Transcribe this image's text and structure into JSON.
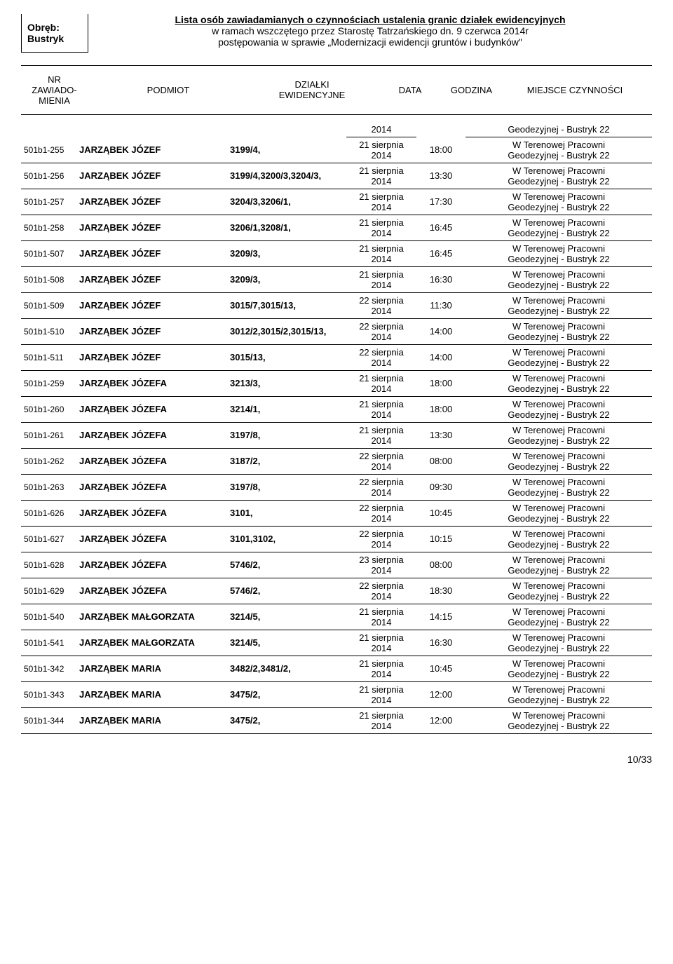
{
  "header": {
    "obreb_label": "Obręb:",
    "obreb_value": "Bustryk",
    "title_line1": "Lista osób zawiadamianych o czynnościach ustalenia granic działek ewidencyjnych",
    "title_line2": "w ramach wszczętego przez Starostę Tatrzańskiego dn. 9 czerwca 2014r",
    "title_line3": "postępowania w sprawie „Modernizacji ewidencji gruntów i budynków\""
  },
  "columns": {
    "c0a": "NR ZAWIADO-",
    "c0b": "MIENIA",
    "c1": "PODMIOT",
    "c2a": "DZIAŁKI",
    "c2b": "EWIDENCYJNE",
    "c3": "DATA",
    "c4": "GODZINA",
    "c5": "MIEJSCE CZYNNOŚCI"
  },
  "date21": "21 sierpnia",
  "date22": "22 sierpnia",
  "date23": "23 sierpnia",
  "year": "2014",
  "place_a": "W Terenowej Pracowni",
  "place_b": "Geodezyjnej - Bustryk 22",
  "rows": [
    {
      "nr": "",
      "podmiot": "",
      "dzialki": "",
      "data1": "",
      "data2": "2014",
      "godz": "",
      "placeA": "",
      "placeB": "Geodezyjnej - Bustryk 22",
      "partial": true
    },
    {
      "nr": "501b1-255",
      "podmiot": "JARZĄBEK JÓZEF",
      "dzialki": "3199/4,",
      "data1": "21 sierpnia",
      "data2": "2014",
      "godz": "18:00",
      "placeA": "W Terenowej Pracowni",
      "placeB": "Geodezyjnej - Bustryk 22"
    },
    {
      "nr": "501b1-256",
      "podmiot": "JARZĄBEK JÓZEF",
      "dzialki": "3199/4,3200/3,3204/3,",
      "data1": "21 sierpnia",
      "data2": "2014",
      "godz": "13:30",
      "placeA": "W Terenowej Pracowni",
      "placeB": "Geodezyjnej - Bustryk 22"
    },
    {
      "nr": "501b1-257",
      "podmiot": "JARZĄBEK JÓZEF",
      "dzialki": "3204/3,3206/1,",
      "data1": "21 sierpnia",
      "data2": "2014",
      "godz": "17:30",
      "placeA": "W Terenowej Pracowni",
      "placeB": "Geodezyjnej - Bustryk 22"
    },
    {
      "nr": "501b1-258",
      "podmiot": "JARZĄBEK JÓZEF",
      "dzialki": "3206/1,3208/1,",
      "data1": "21 sierpnia",
      "data2": "2014",
      "godz": "16:45",
      "placeA": "W Terenowej Pracowni",
      "placeB": "Geodezyjnej - Bustryk 22"
    },
    {
      "nr": "501b1-507",
      "podmiot": "JARZĄBEK JÓZEF",
      "dzialki": "3209/3,",
      "data1": "21 sierpnia",
      "data2": "2014",
      "godz": "16:45",
      "placeA": "W Terenowej Pracowni",
      "placeB": "Geodezyjnej - Bustryk 22"
    },
    {
      "nr": "501b1-508",
      "podmiot": "JARZĄBEK JÓZEF",
      "dzialki": "3209/3,",
      "data1": "21 sierpnia",
      "data2": "2014",
      "godz": "16:30",
      "placeA": "W Terenowej Pracowni",
      "placeB": "Geodezyjnej - Bustryk 22"
    },
    {
      "nr": "501b1-509",
      "podmiot": "JARZĄBEK JÓZEF",
      "dzialki": "3015/7,3015/13,",
      "data1": "22 sierpnia",
      "data2": "2014",
      "godz": "11:30",
      "placeA": "W Terenowej Pracowni",
      "placeB": "Geodezyjnej - Bustryk 22"
    },
    {
      "nr": "501b1-510",
      "podmiot": "JARZĄBEK JÓZEF",
      "dzialki": "3012/2,3015/2,3015/13,",
      "data1": "22 sierpnia",
      "data2": "2014",
      "godz": "14:00",
      "placeA": "W Terenowej Pracowni",
      "placeB": "Geodezyjnej - Bustryk 22"
    },
    {
      "nr": "501b1-511",
      "podmiot": "JARZĄBEK JÓZEF",
      "dzialki": "3015/13,",
      "data1": "22 sierpnia",
      "data2": "2014",
      "godz": "14:00",
      "placeA": "W Terenowej Pracowni",
      "placeB": "Geodezyjnej - Bustryk 22"
    },
    {
      "nr": "501b1-259",
      "podmiot": "JARZĄBEK JÓZEFA",
      "dzialki": "3213/3,",
      "data1": "21 sierpnia",
      "data2": "2014",
      "godz": "18:00",
      "placeA": "W Terenowej Pracowni",
      "placeB": "Geodezyjnej - Bustryk 22"
    },
    {
      "nr": "501b1-260",
      "podmiot": "JARZĄBEK JÓZEFA",
      "dzialki": "3214/1,",
      "data1": "21 sierpnia",
      "data2": "2014",
      "godz": "18:00",
      "placeA": "W Terenowej Pracowni",
      "placeB": "Geodezyjnej - Bustryk 22"
    },
    {
      "nr": "501b1-261",
      "podmiot": "JARZĄBEK JÓZEFA",
      "dzialki": "3197/8,",
      "data1": "21 sierpnia",
      "data2": "2014",
      "godz": "13:30",
      "placeA": "W Terenowej Pracowni",
      "placeB": "Geodezyjnej - Bustryk 22"
    },
    {
      "nr": "501b1-262",
      "podmiot": "JARZĄBEK JÓZEFA",
      "dzialki": "3187/2,",
      "data1": "22 sierpnia",
      "data2": "2014",
      "godz": "08:00",
      "placeA": "W Terenowej Pracowni",
      "placeB": "Geodezyjnej - Bustryk 22"
    },
    {
      "nr": "501b1-263",
      "podmiot": "JARZĄBEK JÓZEFA",
      "dzialki": "3197/8,",
      "data1": "22 sierpnia",
      "data2": "2014",
      "godz": "09:30",
      "placeA": "W Terenowej Pracowni",
      "placeB": "Geodezyjnej - Bustryk 22"
    },
    {
      "nr": "501b1-626",
      "podmiot": "JARZĄBEK JÓZEFA",
      "dzialki": "3101,",
      "data1": "22 sierpnia",
      "data2": "2014",
      "godz": "10:45",
      "placeA": "W Terenowej Pracowni",
      "placeB": "Geodezyjnej - Bustryk 22"
    },
    {
      "nr": "501b1-627",
      "podmiot": "JARZĄBEK JÓZEFA",
      "dzialki": "3101,3102,",
      "data1": "22 sierpnia",
      "data2": "2014",
      "godz": "10:15",
      "placeA": "W Terenowej Pracowni",
      "placeB": "Geodezyjnej - Bustryk 22"
    },
    {
      "nr": "501b1-628",
      "podmiot": "JARZĄBEK JÓZEFA",
      "dzialki": "5746/2,",
      "data1": "23 sierpnia",
      "data2": "2014",
      "godz": "08:00",
      "placeA": "W Terenowej Pracowni",
      "placeB": "Geodezyjnej - Bustryk 22"
    },
    {
      "nr": "501b1-629",
      "podmiot": "JARZĄBEK JÓZEFA",
      "dzialki": "5746/2,",
      "data1": "22 sierpnia",
      "data2": "2014",
      "godz": "18:30",
      "placeA": "W Terenowej Pracowni",
      "placeB": "Geodezyjnej - Bustryk 22"
    },
    {
      "nr": "501b1-540",
      "podmiot": "JARZĄBEK MAŁGORZATA",
      "dzialki": "3214/5,",
      "data1": "21 sierpnia",
      "data2": "2014",
      "godz": "14:15",
      "placeA": "W Terenowej Pracowni",
      "placeB": "Geodezyjnej - Bustryk 22"
    },
    {
      "nr": "501b1-541",
      "podmiot": "JARZĄBEK MAŁGORZATA",
      "dzialki": "3214/5,",
      "data1": "21 sierpnia",
      "data2": "2014",
      "godz": "16:30",
      "placeA": "W Terenowej Pracowni",
      "placeB": "Geodezyjnej - Bustryk 22"
    },
    {
      "nr": "501b1-342",
      "podmiot": "JARZĄBEK MARIA",
      "dzialki": "3482/2,3481/2,",
      "data1": "21 sierpnia",
      "data2": "2014",
      "godz": "10:45",
      "placeA": "W Terenowej Pracowni",
      "placeB": "Geodezyjnej - Bustryk 22"
    },
    {
      "nr": "501b1-343",
      "podmiot": "JARZĄBEK MARIA",
      "dzialki": "3475/2,",
      "data1": "21 sierpnia",
      "data2": "2014",
      "godz": "12:00",
      "placeA": "W Terenowej Pracowni",
      "placeB": "Geodezyjnej - Bustryk 22"
    },
    {
      "nr": "501b1-344",
      "podmiot": "JARZĄBEK MARIA",
      "dzialki": "3475/2,",
      "data1": "21 sierpnia",
      "data2": "2014",
      "godz": "12:00",
      "placeA": "W Terenowej Pracowni",
      "placeB": "Geodezyjnej - Bustryk 22"
    }
  ],
  "footer": "10/33"
}
